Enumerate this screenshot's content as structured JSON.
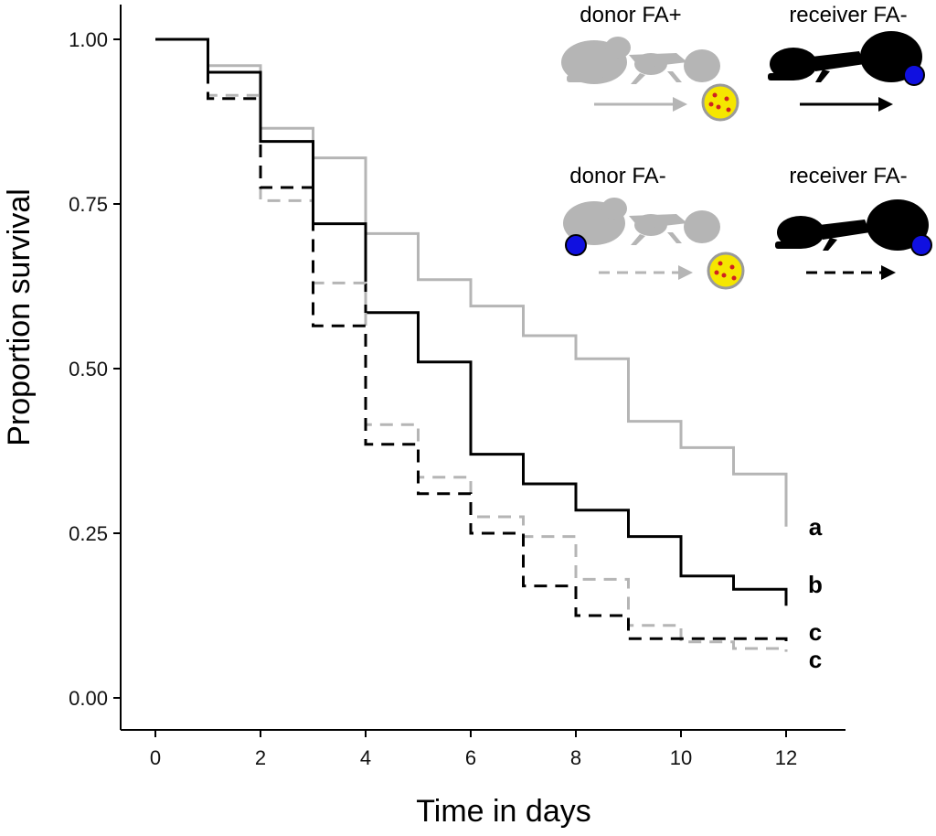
{
  "chart_data": {
    "type": "line",
    "step": true,
    "title": "",
    "xlabel": "Time in days",
    "ylabel": "Proportion survival",
    "xlim": [
      0,
      12
    ],
    "ylim": [
      0,
      1
    ],
    "xticks": [
      0,
      2,
      4,
      6,
      8,
      10,
      12
    ],
    "yticks": [
      0.0,
      0.25,
      0.5,
      0.75,
      1.0
    ],
    "ytick_labels": [
      "0.00",
      "0.25",
      "0.50",
      "0.75",
      "1.00"
    ],
    "grid": false,
    "legend_placement": "top-right",
    "legend": [
      {
        "label": "donor FA+",
        "color": "#b5b5b5",
        "dash": false
      },
      {
        "label": "receiver FA-",
        "color": "#000000",
        "dash": false
      },
      {
        "label": "donor FA-",
        "color": "#b5b5b5",
        "dash": true
      },
      {
        "label": "receiver FA-",
        "color": "#000000",
        "dash": true
      }
    ],
    "x": [
      0,
      1,
      2,
      3,
      4,
      5,
      6,
      7,
      8,
      9,
      10,
      11,
      12
    ],
    "series": [
      {
        "values": [
          1.0,
          0.96,
          0.865,
          0.82,
          0.705,
          0.635,
          0.595,
          0.55,
          0.515,
          0.42,
          0.38,
          0.34,
          0.26
        ],
        "color": "#b5b5b5",
        "dash": false,
        "end_label": "a"
      },
      {
        "values": [
          1.0,
          0.95,
          0.845,
          0.72,
          0.585,
          0.51,
          0.37,
          0.325,
          0.285,
          0.245,
          0.185,
          0.165,
          0.14
        ],
        "color": "#000000",
        "dash": false,
        "end_label": "b"
      },
      {
        "values": [
          1.0,
          0.915,
          0.755,
          0.63,
          0.415,
          0.335,
          0.275,
          0.245,
          0.18,
          0.11,
          0.085,
          0.075,
          0.07
        ],
        "color": "#b5b5b5",
        "dash": true,
        "end_label": "c"
      },
      {
        "values": [
          1.0,
          0.91,
          0.775,
          0.565,
          0.385,
          0.31,
          0.25,
          0.17,
          0.125,
          0.09,
          0.09,
          0.09,
          0.08
        ],
        "color": "#000000",
        "dash": true,
        "end_label": "c"
      }
    ],
    "icon_colors": {
      "sporoz_spot": "#1010e0",
      "pathogen_fill": "#f5e600",
      "pathogen_dots": "#d02020",
      "pathogen_edge": "#9a9a9a"
    }
  }
}
